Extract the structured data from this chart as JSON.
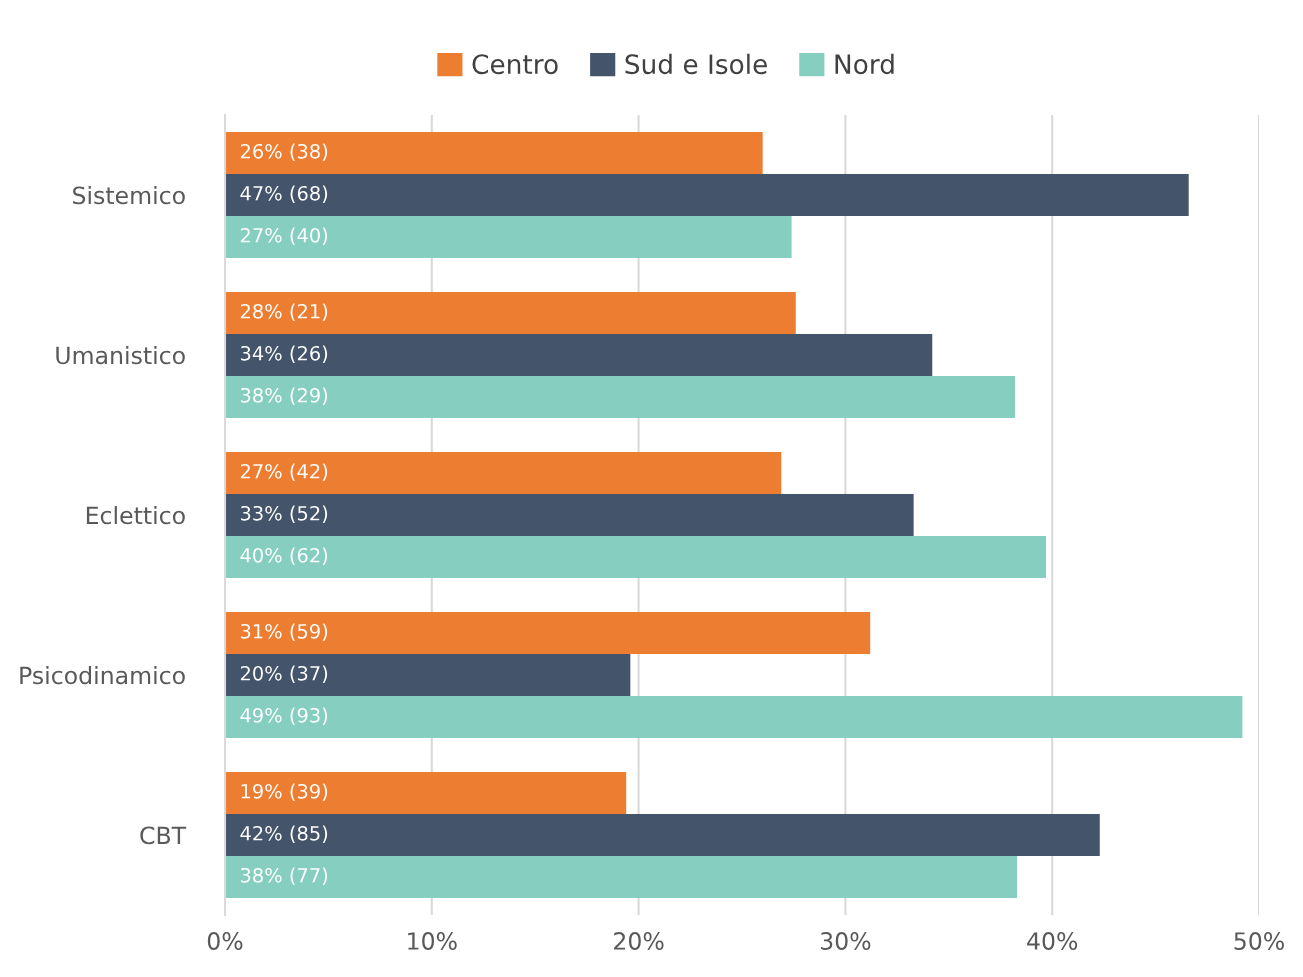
{
  "chart_data": {
    "type": "bar",
    "orientation": "horizontal",
    "categories": [
      "Sistemico",
      "Umanistico",
      "Eclettico",
      "Psicodinamico",
      "CBT"
    ],
    "series": [
      {
        "name": "Centro",
        "color": "#ed7d31",
        "values": [
          26.0,
          27.6,
          26.9,
          31.2,
          19.4
        ],
        "value_labels": [
          "26% (38)",
          "28% (21)",
          "27% (42)",
          "31% (59)",
          "19% (39)"
        ]
      },
      {
        "name": "Sud e Isole",
        "color": "#44546a",
        "values": [
          46.6,
          34.2,
          33.3,
          19.6,
          42.3
        ],
        "value_labels": [
          "47% (68)",
          "34% (26)",
          "33% (52)",
          "20% (37)",
          "42% (85)"
        ]
      },
      {
        "name": "Nord",
        "color": "#86cfc0",
        "values": [
          27.4,
          38.2,
          39.7,
          49.2,
          38.3
        ],
        "value_labels": [
          "27% (40)",
          "38% (29)",
          "40% (62)",
          "49% (93)",
          "38% (77)"
        ]
      }
    ],
    "xlim": [
      0,
      50
    ],
    "xticks": [
      {
        "value": 0,
        "label": "0%"
      },
      {
        "value": 10,
        "label": "10%"
      },
      {
        "value": 20,
        "label": "20%"
      },
      {
        "value": 30,
        "label": "30%"
      },
      {
        "value": 40,
        "label": "40%"
      },
      {
        "value": 50,
        "label": "50%"
      }
    ],
    "grid": "x",
    "legend": "top"
  }
}
